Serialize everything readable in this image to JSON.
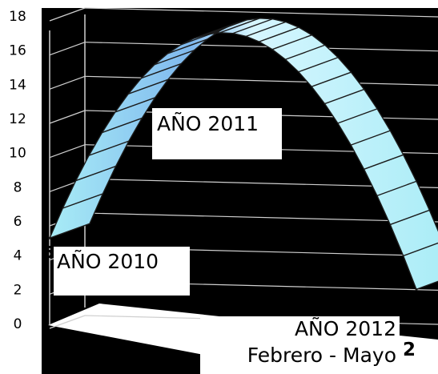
{
  "chart_data": {
    "type": "area",
    "title": "",
    "xlabel": "",
    "ylabel": "",
    "categories": [
      "AÑO 2010",
      "AÑO 2011",
      "AÑO 2012"
    ],
    "category_notes": [
      "",
      "",
      "Febrero - Mayo"
    ],
    "values": [
      5,
      17,
      2
    ],
    "data_labels": [
      "5",
      "",
      "2"
    ],
    "ylim": [
      0,
      18
    ],
    "yticks": [
      0,
      2,
      4,
      6,
      8,
      10,
      12,
      14,
      16,
      18
    ],
    "grid": true,
    "three_d": true,
    "colors": {
      "background": "#000000",
      "gridline": "#cfcfcf",
      "floor": "#ffffff",
      "band_light": "#d6f6ff",
      "band_mid": "#a8ecf6",
      "band_peak": "#7fb8ee",
      "band_stroke": "#1a1a1a"
    }
  }
}
